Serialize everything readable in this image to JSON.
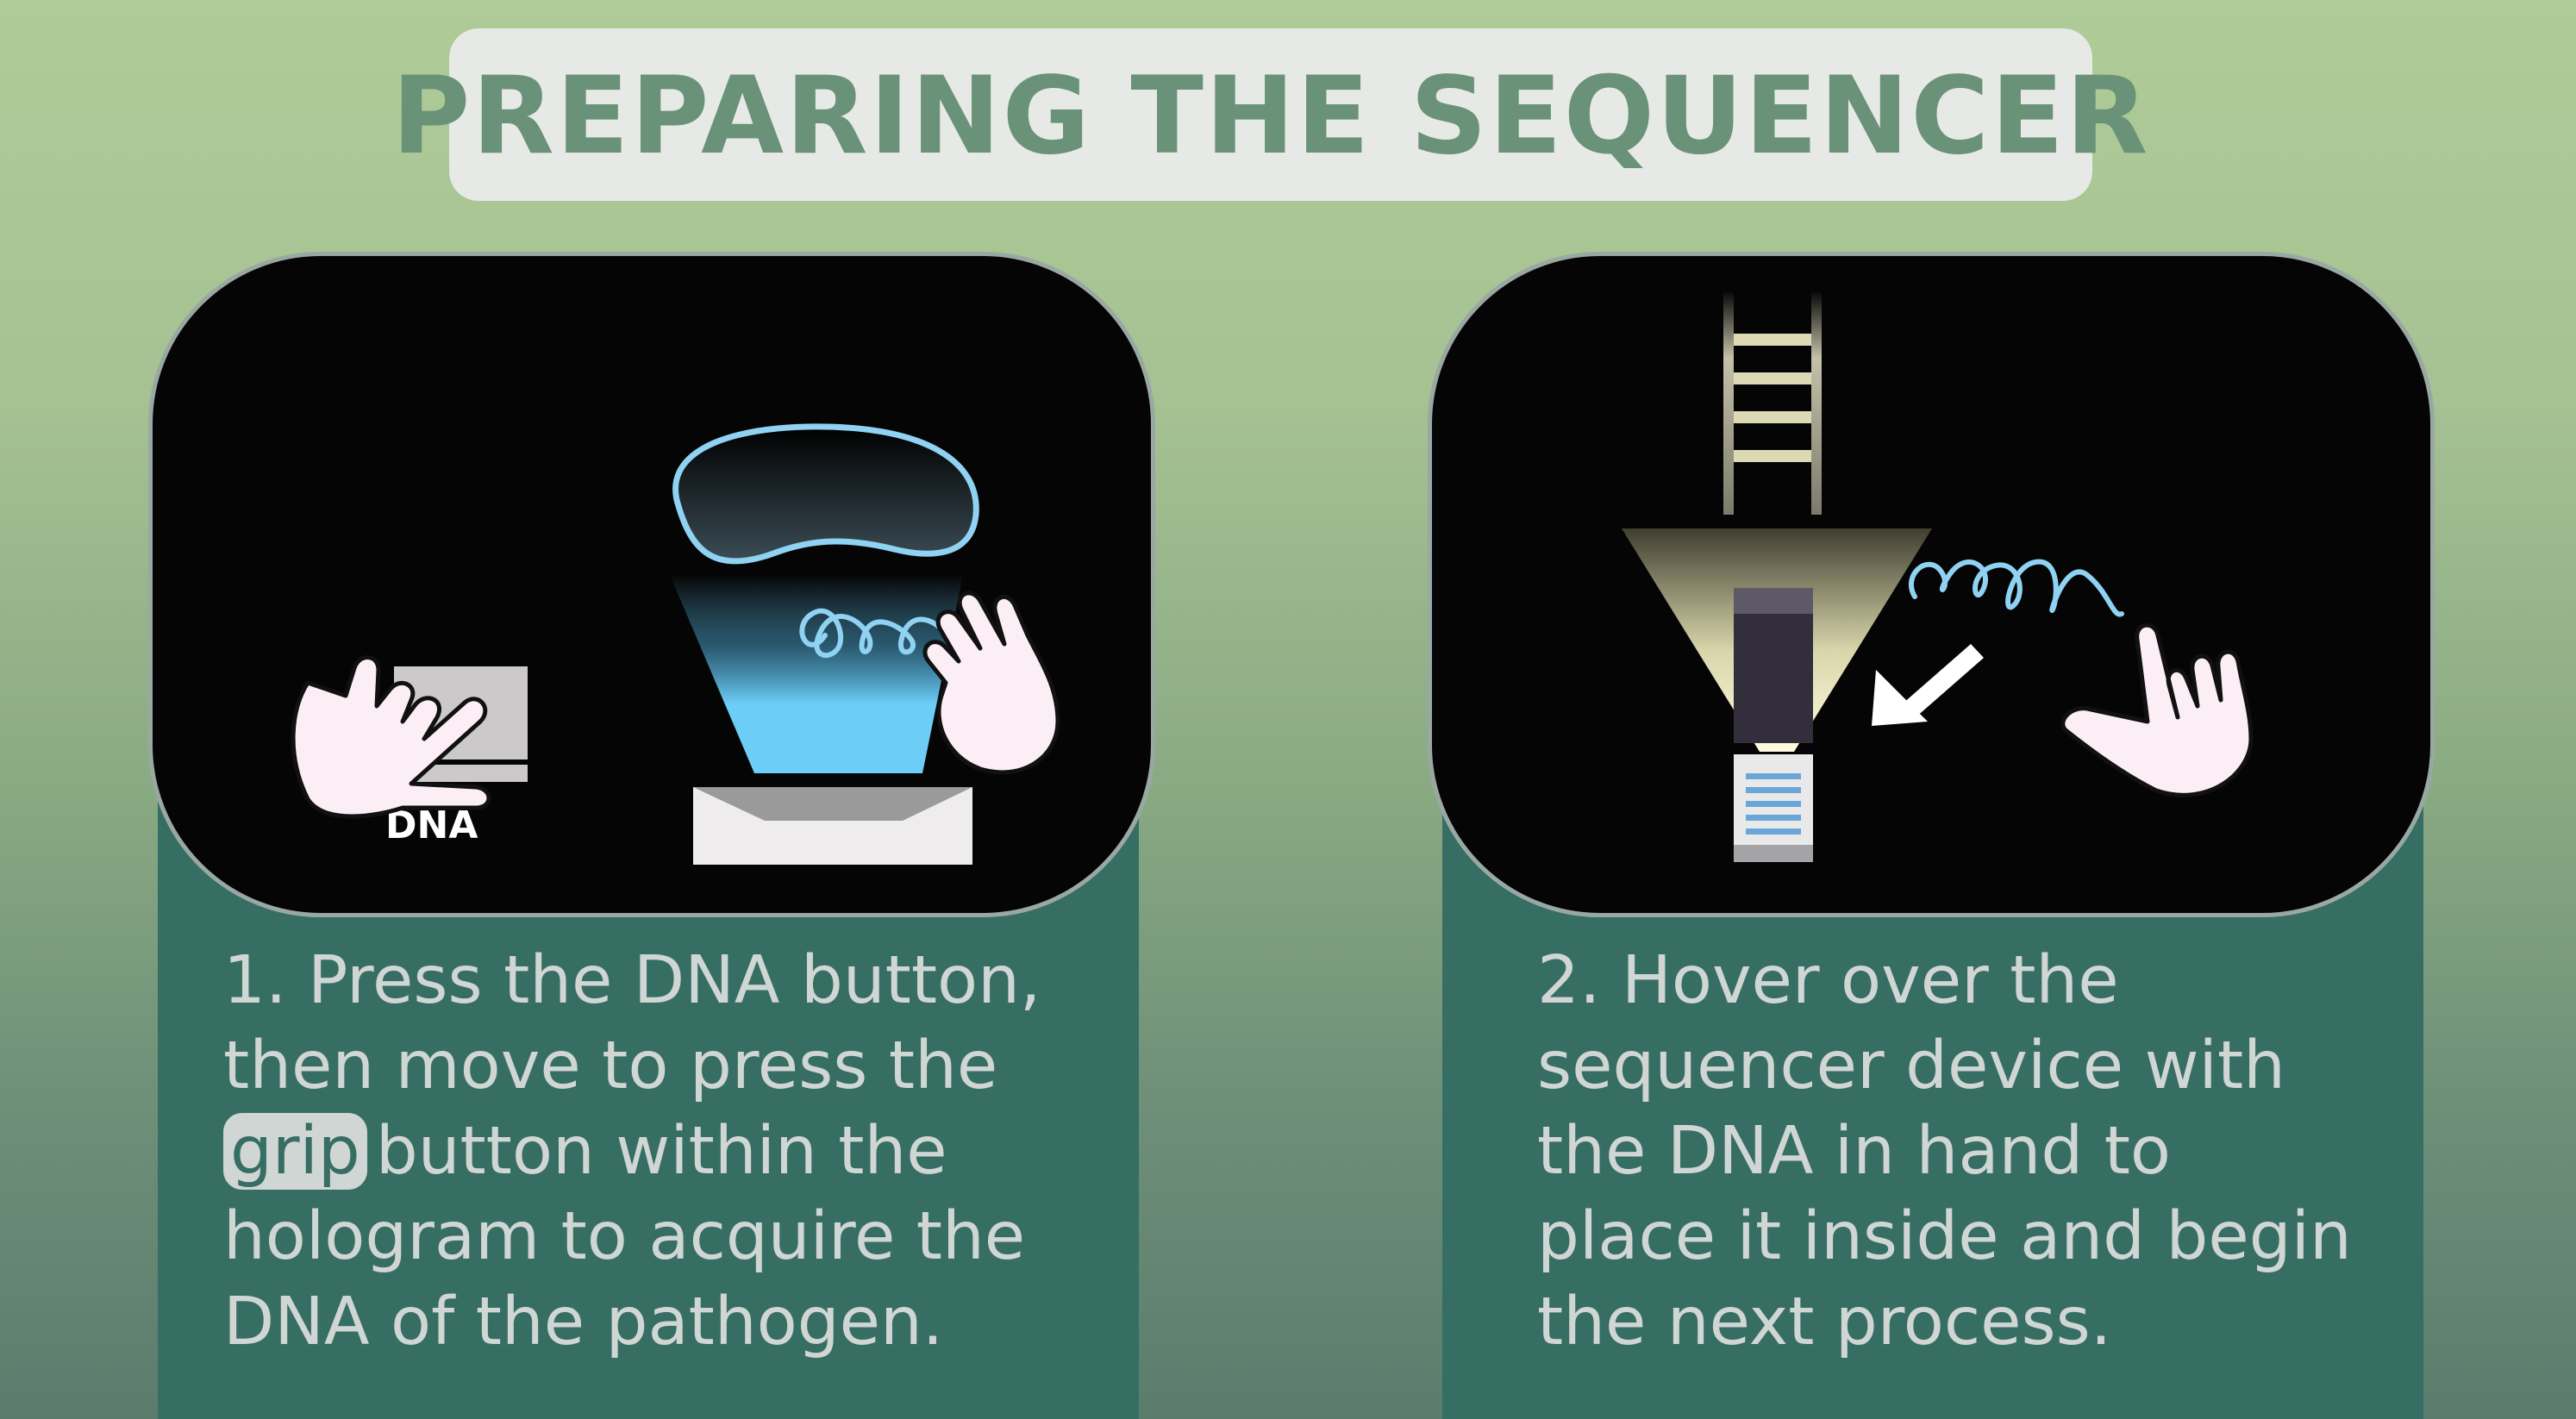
{
  "title": "PREPARING THE SEQUENCER",
  "panel1": {
    "dna_label": "DNA"
  },
  "step1": {
    "line1": "1. Press the DNA button,",
    "line2": "then move to press the",
    "grip": "grip",
    "line3_rest": "button within the",
    "line4": "hologram to acquire the",
    "line5": "DNA of the pathogen."
  },
  "step2": {
    "line1": "2. Hover over the",
    "line2": "sequencer device with",
    "line3": "the DNA in hand to",
    "line4": "place it inside and begin",
    "line5": "the next process."
  },
  "colors": {
    "title_text": "#6a9278",
    "title_bg": "#e6e9e6",
    "column_bg": "#376e64",
    "panel_bg": "#050505",
    "hologram_blue": "#6ccdf6",
    "text_light": "#d0d6d3"
  }
}
